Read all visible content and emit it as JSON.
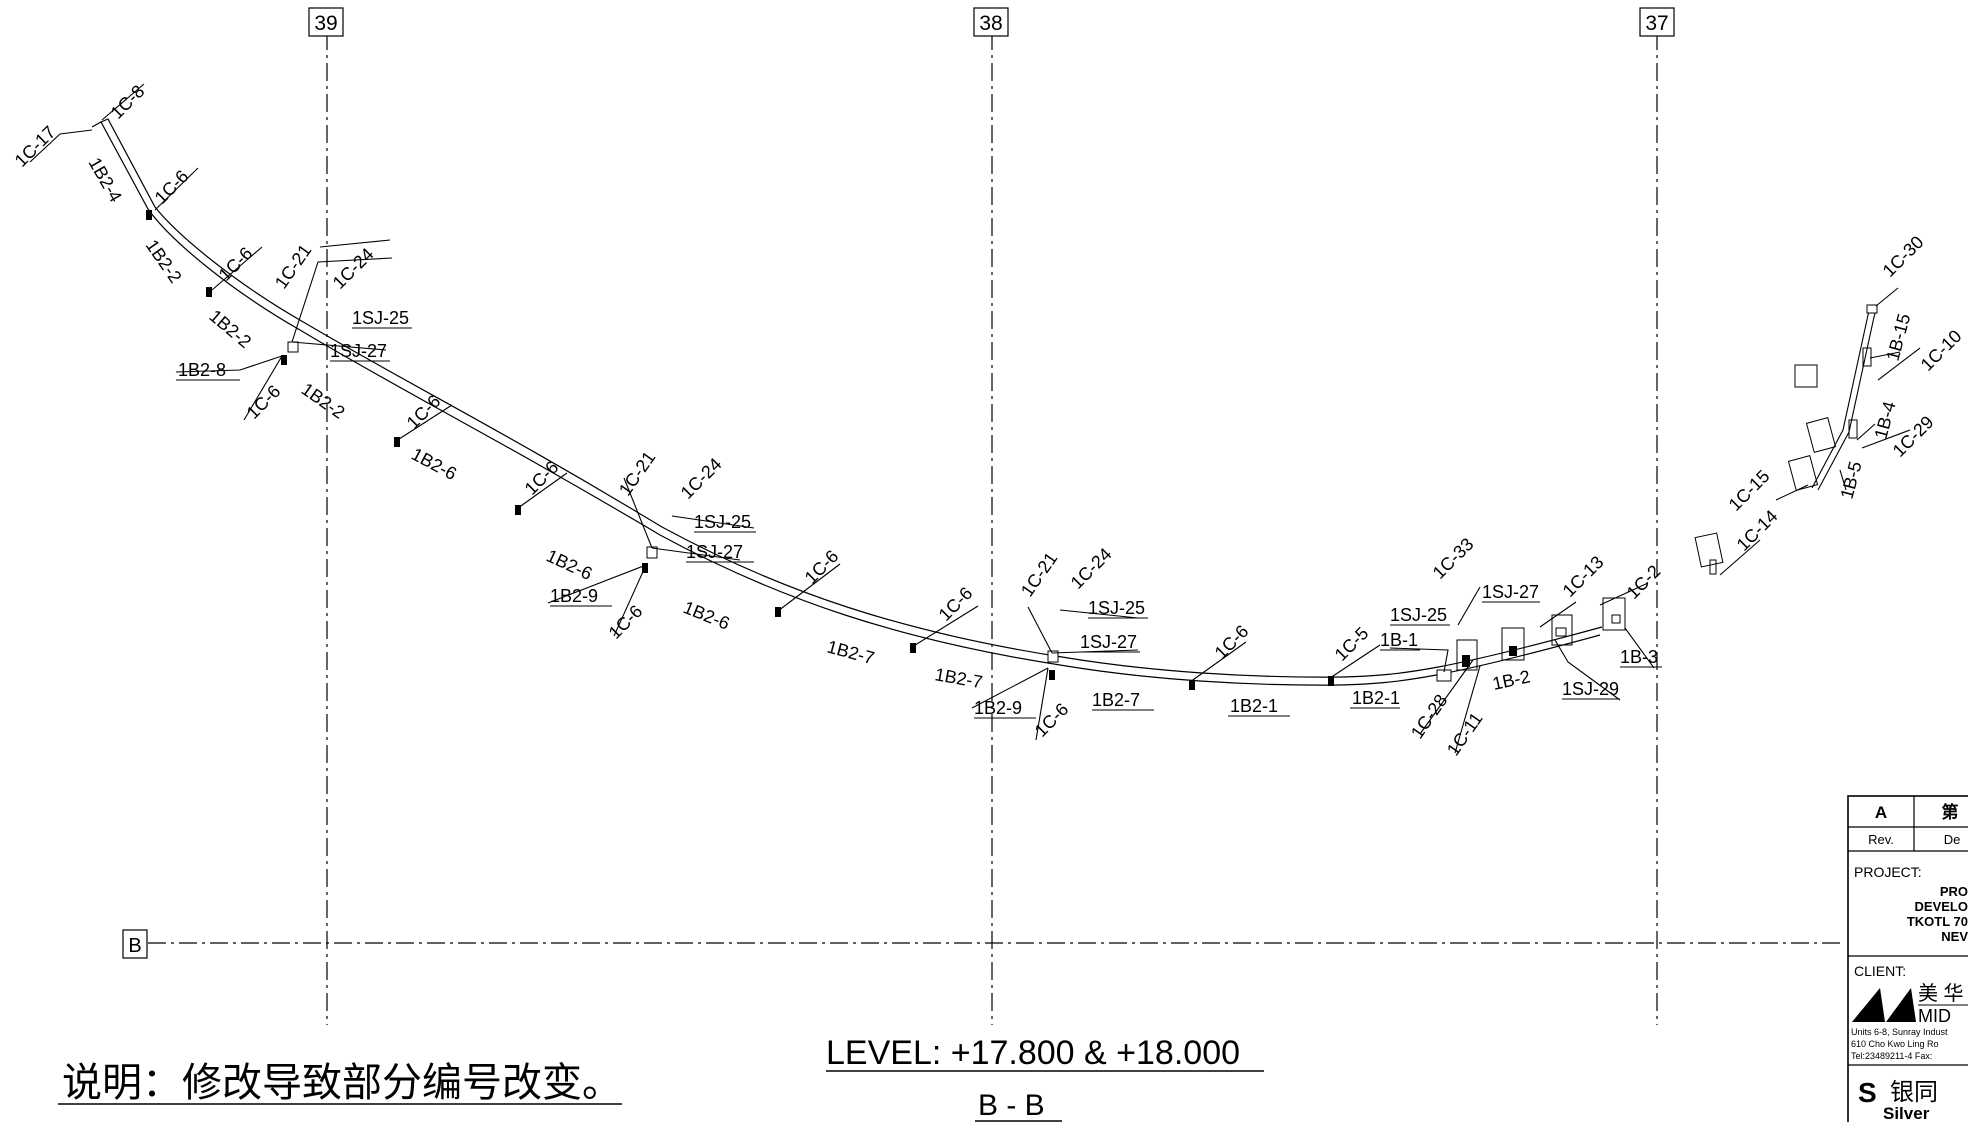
{
  "grid": {
    "verticals": [
      "39",
      "38",
      "37"
    ],
    "horizontal": "B"
  },
  "labels": {
    "c8_top": "1C-8",
    "c17": "1C-17",
    "b24_top": "1B2-4",
    "c6_a": "1C-6",
    "b22_a": "1B2-2",
    "c6_b": "1C-6",
    "c21_a": "1C-21",
    "c24_a": "1C-24",
    "sj25_a": "1SJ-25",
    "sj27_a": "1SJ-27",
    "b22_b": "1B2-2",
    "b28": "1B2-8",
    "c6_c": "1C-6",
    "b22_c": "1B2-2",
    "c6_d": "1C-6",
    "b26_a": "1B2-6",
    "c6_e": "1C-6",
    "c21_b": "1C-21",
    "c24_b": "1C-24",
    "sj25_b": "1SJ-25",
    "sj27_b": "1SJ-27",
    "b26_b": "1B2-6",
    "b29_a": "1B2-9",
    "c6_f": "1C-6",
    "b26_c": "1B2-6",
    "c6_g": "1C-6",
    "c6_h": "1C-6",
    "b27_a": "1B2-7",
    "c21_c": "1C-21",
    "c24_c": "1C-24",
    "sj25_c": "1SJ-25",
    "sj27_c": "1SJ-27",
    "b27_b": "1B2-7",
    "b29_b": "1B2-9",
    "c6_i": "1C-6",
    "b27_c": "1B2-7",
    "c6_j": "1C-6",
    "b21_a": "1B2-1",
    "c5": "1C-5",
    "b21_b": "1B2-1",
    "c33": "1C-33",
    "sj25_d": "1SJ-25",
    "sj27_d": "1SJ-27",
    "b1": "1B-1",
    "c13": "1C-13",
    "c2": "1C-2",
    "b3": "1B-3",
    "b2": "1B-2",
    "sj29": "1SJ-29",
    "c28": "1C-28",
    "c11": "1C-11",
    "c30": "1C-30",
    "b15": "1B-15",
    "c10": "1C-10",
    "b4": "1B-4",
    "c29": "1C-29",
    "c15": "1C-15",
    "b5": "1B-5",
    "c14": "1C-14"
  },
  "note": "说明：修改导致部分编号改变。",
  "level": "LEVEL: +17.800 & +18.000",
  "section": "B - B",
  "title_block": {
    "rev_value": "A",
    "rev_desc": "第",
    "rev_label": "Rev.",
    "desc_label": "De",
    "project_label": "PROJECT:",
    "project_lines": [
      "PRO",
      "DEVELO",
      "TKOTL 70",
      "NEV"
    ],
    "client_label": "CLIENT:",
    "client_cn": "美 华",
    "client_en": "MID",
    "address_lines": [
      "Units 6-8, Sunray Indust",
      "610 Cho Kwo Ling Ro",
      "Tel:23489211-4  Fax:"
    ],
    "company_cn": "银同",
    "company_en": "Silver"
  }
}
